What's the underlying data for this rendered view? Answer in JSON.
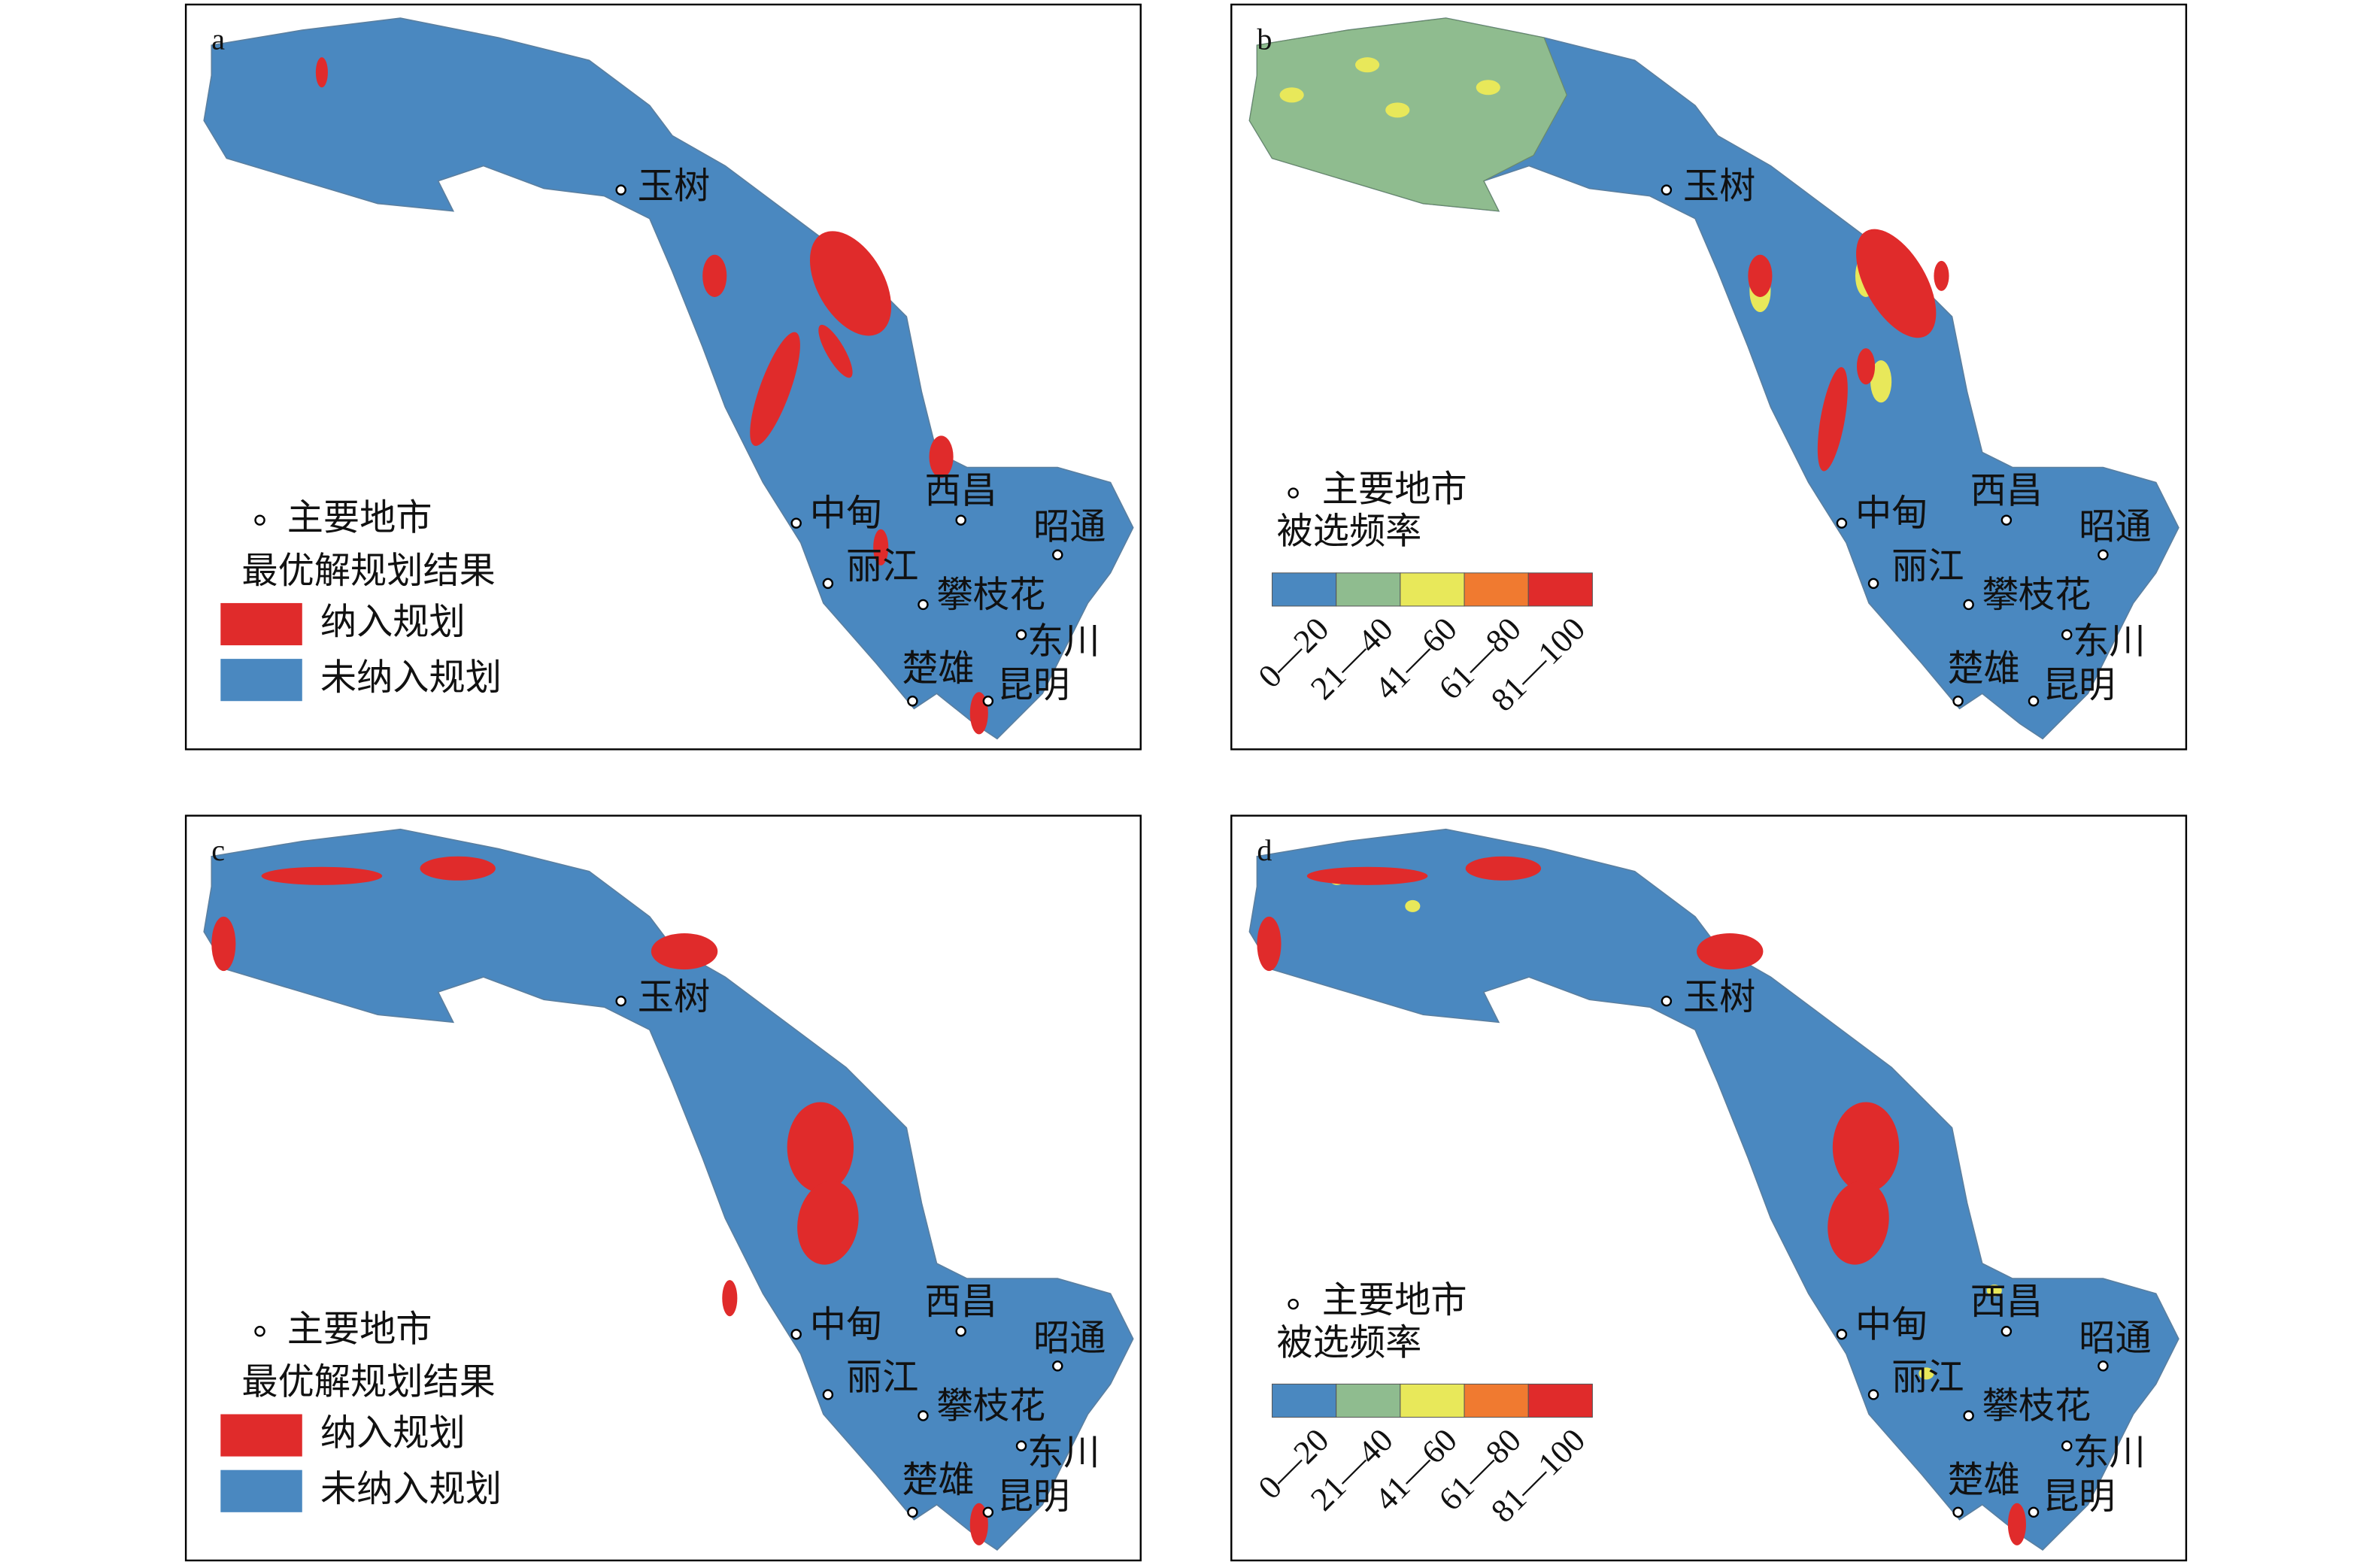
{
  "panels": [
    {
      "label": "a",
      "cities": [
        "玉树",
        "中甸",
        "西昌",
        "昭通",
        "丽江",
        "攀枝花",
        "东川",
        "楚雄",
        "昆明"
      ],
      "legend": {
        "city_label": "主要地市",
        "title": "最优解规划结果",
        "items": [
          {
            "label": "纳入规划",
            "color": "#e02b2b"
          },
          {
            "label": "未纳入规划",
            "color": "#4a88c0"
          }
        ]
      }
    },
    {
      "label": "b",
      "cities": [
        "玉树",
        "中甸",
        "西昌",
        "昭通",
        "丽江",
        "攀枝花",
        "东川",
        "楚雄",
        "昆明"
      ],
      "legend": {
        "city_label": "主要地市",
        "title": "被选频率",
        "classes": [
          {
            "label": "0—20",
            "color": "#4a88c0"
          },
          {
            "label": "21—40",
            "color": "#8fbc8f"
          },
          {
            "label": "41—60",
            "color": "#e8e85a"
          },
          {
            "label": "61—80",
            "color": "#f07a30"
          },
          {
            "label": "81—100",
            "color": "#e02b2b"
          }
        ]
      }
    },
    {
      "label": "c",
      "cities": [
        "玉树",
        "中甸",
        "西昌",
        "昭通",
        "丽江",
        "攀枝花",
        "东川",
        "楚雄",
        "昆明"
      ],
      "legend": {
        "city_label": "主要地市",
        "title": "最优解规划结果",
        "items": [
          {
            "label": "纳入规划",
            "color": "#e02b2b"
          },
          {
            "label": "未纳入规划",
            "color": "#4a88c0"
          }
        ]
      }
    },
    {
      "label": "d",
      "cities": [
        "玉树",
        "中甸",
        "西昌",
        "昭通",
        "丽江",
        "攀枝花",
        "东川",
        "楚雄",
        "昆明"
      ],
      "legend": {
        "city_label": "主要地市",
        "title": "被选频率",
        "classes": [
          {
            "label": "0—20",
            "color": "#4a88c0"
          },
          {
            "label": "21—40",
            "color": "#8fbc8f"
          },
          {
            "label": "41—60",
            "color": "#e8e85a"
          },
          {
            "label": "61—80",
            "color": "#f07a30"
          },
          {
            "label": "81—100",
            "color": "#e02b2b"
          }
        ]
      }
    }
  ]
}
